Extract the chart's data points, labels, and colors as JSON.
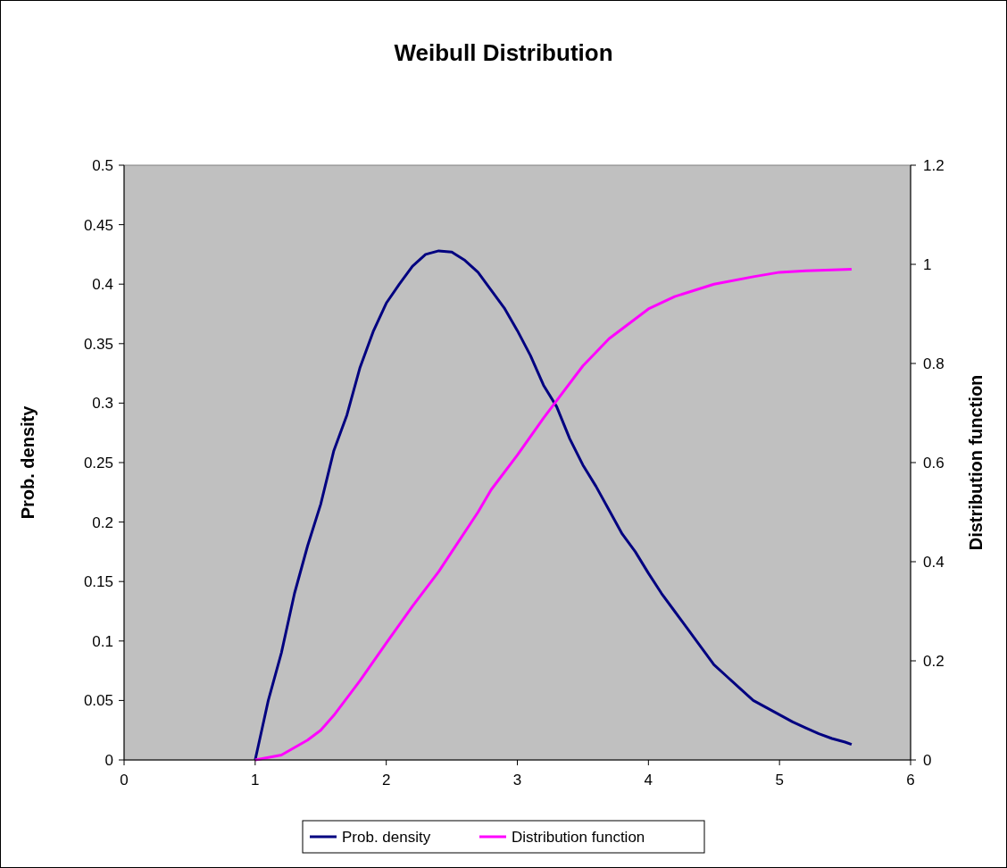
{
  "chart_data": {
    "type": "line",
    "title": "Weibull Distribution",
    "ylabel": "Prob. density",
    "y2label": "Distribution function",
    "xlim": [
      0,
      6
    ],
    "xticks": [
      0,
      1,
      2,
      3,
      4,
      5,
      6
    ],
    "ylim": [
      0,
      0.5
    ],
    "yticks": [
      0,
      0.05,
      0.1,
      0.15,
      0.2,
      0.25,
      0.3,
      0.35,
      0.4,
      0.45,
      0.5
    ],
    "y2lim": [
      0,
      1.2
    ],
    "y2ticks": [
      0,
      0.2,
      0.4,
      0.6,
      0.8,
      1,
      1.2
    ],
    "grid": false,
    "legend": "bottom",
    "marker": "none",
    "line_style": "solid",
    "series": [
      {
        "name": "Prob. density",
        "color": "#000080",
        "x": [
          1,
          1.05,
          1.1,
          1.2,
          1.3,
          1.4,
          1.5,
          1.6,
          1.7,
          1.8,
          1.9,
          2,
          2.1,
          2.2,
          2.3,
          2.4,
          2.5,
          2.6,
          2.7,
          2.8,
          2.9,
          3,
          3.1,
          3.2,
          3.3,
          3.4,
          3.5,
          3.6,
          3.7,
          3.8,
          3.9,
          4,
          4.1,
          4.2,
          4.3,
          4.4,
          4.5,
          4.6,
          4.7,
          4.8,
          4.9,
          5,
          5.1,
          5.2,
          5.3,
          5.4,
          5.5,
          5.55
        ],
        "values": [
          0,
          0.025,
          0.05,
          0.09,
          0.14,
          0.18,
          0.215,
          0.26,
          0.29,
          0.33,
          0.36,
          0.384,
          0.4,
          0.415,
          0.425,
          0.428,
          0.427,
          0.42,
          0.41,
          0.395,
          0.38,
          0.361,
          0.34,
          0.315,
          0.297,
          0.27,
          0.248,
          0.23,
          0.21,
          0.19,
          0.175,
          0.157,
          0.14,
          0.125,
          0.11,
          0.095,
          0.08,
          0.07,
          0.06,
          0.05,
          0.044,
          0.038,
          0.032,
          0.027,
          0.022,
          0.018,
          0.015,
          0.013
        ]
      },
      {
        "name": "Distribution function",
        "color": "#ff00ff",
        "axis": "y2",
        "x": [
          1,
          1.2,
          1.4,
          1.5,
          1.6,
          1.8,
          2,
          2.2,
          2.4,
          2.5,
          2.7,
          2.8,
          3,
          3.2,
          3.3,
          3.5,
          3.7,
          4,
          4.2,
          4.5,
          4.8,
          5,
          5.2,
          5.55
        ],
        "values": [
          0,
          0.01,
          0.04,
          0.06,
          0.09,
          0.16,
          0.236,
          0.31,
          0.38,
          0.42,
          0.5,
          0.545,
          0.615,
          0.69,
          0.725,
          0.795,
          0.85,
          0.91,
          0.935,
          0.96,
          0.975,
          0.984,
          0.987,
          0.99
        ]
      }
    ]
  }
}
